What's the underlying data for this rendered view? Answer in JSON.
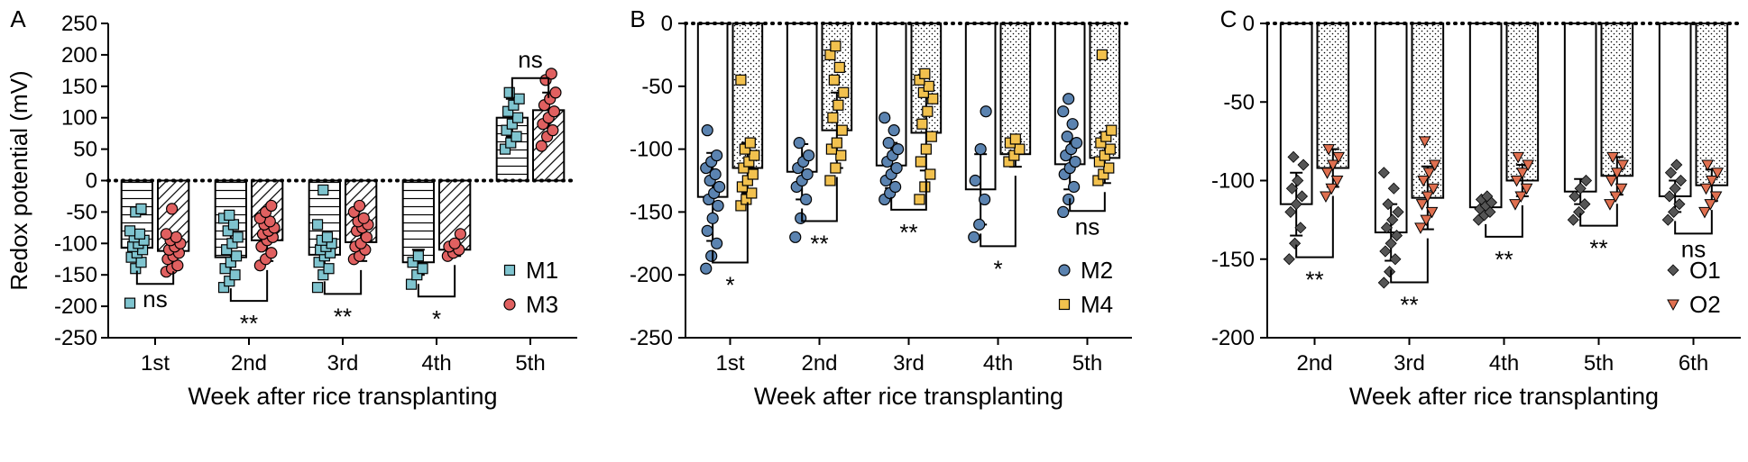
{
  "chart_data": [
    {
      "panel_label": "A",
      "type": "bar",
      "ylabel": "Redox potential (mV)",
      "xlabel": "Week after rice transplanting",
      "ylim": [
        -250,
        250
      ],
      "yticks": [
        -250,
        -200,
        -150,
        -100,
        -50,
        0,
        50,
        100,
        150,
        200,
        250
      ],
      "categories": [
        "1st",
        "2nd",
        "3rd",
        "4th",
        "5th"
      ],
      "legend_position": "bottom-right",
      "series": [
        {
          "name": "M1",
          "pattern": "horizontal-lines",
          "marker": "square",
          "marker_color": "#7fc4cf",
          "values": [
            -107,
            -122,
            -118,
            -130,
            100
          ],
          "errors": [
            22,
            35,
            28,
            20,
            30
          ]
        },
        {
          "name": "M3",
          "pattern": "diagonal-lines",
          "marker": "circle",
          "marker_color": "#e06060",
          "values": [
            -112,
            -95,
            -98,
            -110,
            112
          ],
          "errors": [
            18,
            33,
            30,
            10,
            28
          ]
        }
      ],
      "significance": [
        {
          "category": "1st",
          "label": "ns"
        },
        {
          "category": "2nd",
          "label": "**"
        },
        {
          "category": "3rd",
          "label": "**"
        },
        {
          "category": "4th",
          "label": "*"
        },
        {
          "category": "5th",
          "label": "ns"
        }
      ],
      "points": [
        [
          [
            -195,
            -140,
            -130,
            -122,
            -115,
            -110,
            -105,
            -100,
            -95,
            -90,
            -85,
            -80,
            -50,
            -45
          ],
          [
            -145,
            -140,
            -135,
            -125,
            -120,
            -115,
            -110,
            -105,
            -100,
            -95,
            -90,
            -85,
            -45
          ]
        ],
        [
          [
            -170,
            -160,
            -150,
            -140,
            -130,
            -120,
            -110,
            -100,
            -90,
            -80,
            -70,
            -60,
            -55
          ],
          [
            -135,
            -125,
            -115,
            -105,
            -95,
            -90,
            -85,
            -80,
            -75,
            -70,
            -65,
            -60,
            -50,
            -40
          ]
        ],
        [
          [
            -170,
            -150,
            -140,
            -130,
            -120,
            -115,
            -110,
            -105,
            -100,
            -95,
            -90,
            -70,
            -15
          ],
          [
            -125,
            -120,
            -110,
            -105,
            -100,
            -90,
            -80,
            -75,
            -70,
            -65,
            -60,
            -50,
            -40
          ]
        ],
        [
          [
            -165,
            -150,
            -140,
            -130,
            -120
          ],
          [
            -120,
            -115,
            -110,
            -105,
            -100,
            -85
          ]
        ],
        [
          [
            50,
            60,
            70,
            80,
            90,
            100,
            110,
            120,
            130,
            140
          ],
          [
            55,
            70,
            80,
            90,
            100,
            110,
            120,
            130,
            140,
            160,
            170
          ]
        ]
      ]
    },
    {
      "panel_label": "B",
      "type": "bar",
      "ylabel": "",
      "xlabel": "Week after rice transplanting",
      "ylim": [
        -250,
        0
      ],
      "yticks": [
        -250,
        -200,
        -150,
        -100,
        -50,
        0
      ],
      "categories": [
        "1st",
        "2nd",
        "3rd",
        "4th",
        "5th"
      ],
      "legend_position": "bottom-right",
      "series": [
        {
          "name": "M2",
          "pattern": "none",
          "marker": "circle",
          "marker_color": "#5b83b0",
          "values": [
            -138,
            -118,
            -113,
            -132,
            -112
          ],
          "errors": [
            35,
            22,
            18,
            28,
            20
          ]
        },
        {
          "name": "M4",
          "pattern": "dots",
          "marker": "square",
          "marker_color": "#f2c14e",
          "values": [
            -115,
            -85,
            -87,
            -104,
            -107
          ],
          "errors": [
            20,
            30,
            30,
            10,
            20
          ]
        }
      ],
      "significance": [
        {
          "category": "1st",
          "label": "*"
        },
        {
          "category": "2nd",
          "label": "**"
        },
        {
          "category": "3rd",
          "label": "**"
        },
        {
          "category": "4th",
          "label": "*"
        },
        {
          "category": "5th",
          "label": "ns"
        }
      ],
      "points": [
        [
          [
            -195,
            -185,
            -175,
            -165,
            -155,
            -145,
            -140,
            -135,
            -130,
            -125,
            -120,
            -115,
            -110,
            -105,
            -85
          ],
          [
            -145,
            -140,
            -135,
            -130,
            -125,
            -120,
            -115,
            -110,
            -105,
            -100,
            -95,
            -45
          ]
        ],
        [
          [
            -170,
            -155,
            -140,
            -130,
            -125,
            -120,
            -115,
            -110,
            -105,
            -95
          ],
          [
            -125,
            -115,
            -105,
            -100,
            -95,
            -85,
            -75,
            -65,
            -55,
            -45,
            -35,
            -25,
            -18
          ]
        ],
        [
          [
            -140,
            -135,
            -130,
            -125,
            -120,
            -115,
            -110,
            -105,
            -100,
            -95,
            -85,
            -75
          ],
          [
            -140,
            -130,
            -120,
            -110,
            -100,
            -90,
            -80,
            -70,
            -60,
            -55,
            -50,
            -45,
            -40
          ]
        ],
        [
          [
            -170,
            -160,
            -140,
            -125,
            -100,
            -70
          ],
          [
            -110,
            -105,
            -100,
            -95,
            -92
          ]
        ],
        [
          [
            -150,
            -140,
            -130,
            -120,
            -115,
            -110,
            -105,
            -100,
            -95,
            -90,
            -80,
            -70,
            -60
          ],
          [
            -125,
            -120,
            -115,
            -110,
            -105,
            -100,
            -95,
            -90,
            -85,
            -25
          ]
        ]
      ]
    },
    {
      "panel_label": "C",
      "type": "bar",
      "ylabel": "",
      "xlabel": "Week after rice transplanting",
      "ylim": [
        -200,
        0
      ],
      "yticks": [
        -200,
        -150,
        -100,
        -50,
        0
      ],
      "categories": [
        "2nd",
        "3rd",
        "4th",
        "5th",
        "6th"
      ],
      "legend_position": "bottom-right",
      "series": [
        {
          "name": "O1",
          "pattern": "none",
          "marker": "diamond",
          "marker_color": "#555555",
          "values": [
            -115,
            -133,
            -117,
            -107,
            -110
          ],
          "errors": [
            20,
            18,
            5,
            8,
            10
          ]
        },
        {
          "name": "O2",
          "pattern": "dots",
          "marker": "triangle-down",
          "marker_color": "#e07050",
          "values": [
            -92,
            -111,
            -100,
            -97,
            -103
          ],
          "errors": [
            12,
            20,
            10,
            12,
            10
          ]
        }
      ],
      "significance": [
        {
          "category": "2nd",
          "label": "**"
        },
        {
          "category": "3rd",
          "label": "**"
        },
        {
          "category": "4th",
          "label": "**"
        },
        {
          "category": "5th",
          "label": "**"
        },
        {
          "category": "6th",
          "label": "ns"
        }
      ],
      "points": [
        [
          [
            -150,
            -140,
            -130,
            -120,
            -115,
            -110,
            -105,
            -100,
            -90,
            -85
          ],
          [
            -110,
            -105,
            -100,
            -95,
            -90,
            -85,
            -80
          ]
        ],
        [
          [
            -165,
            -158,
            -150,
            -145,
            -140,
            -135,
            -130,
            -125,
            -120,
            -115,
            -105,
            -95
          ],
          [
            -130,
            -125,
            -120,
            -115,
            -110,
            -105,
            -100,
            -95,
            -90,
            -75
          ]
        ],
        [
          [
            -125,
            -122,
            -120,
            -118,
            -116,
            -114,
            -112,
            -110
          ],
          [
            -115,
            -110,
            -105,
            -100,
            -95,
            -90,
            -85
          ]
        ],
        [
          [
            -125,
            -120,
            -115,
            -110,
            -105,
            -100
          ],
          [
            -115,
            -110,
            -105,
            -100,
            -95,
            -90,
            -85
          ]
        ],
        [
          [
            -125,
            -120,
            -115,
            -110,
            -105,
            -100,
            -95,
            -90
          ],
          [
            -120,
            -115,
            -110,
            -105,
            -100,
            -95,
            -90
          ]
        ]
      ]
    }
  ]
}
